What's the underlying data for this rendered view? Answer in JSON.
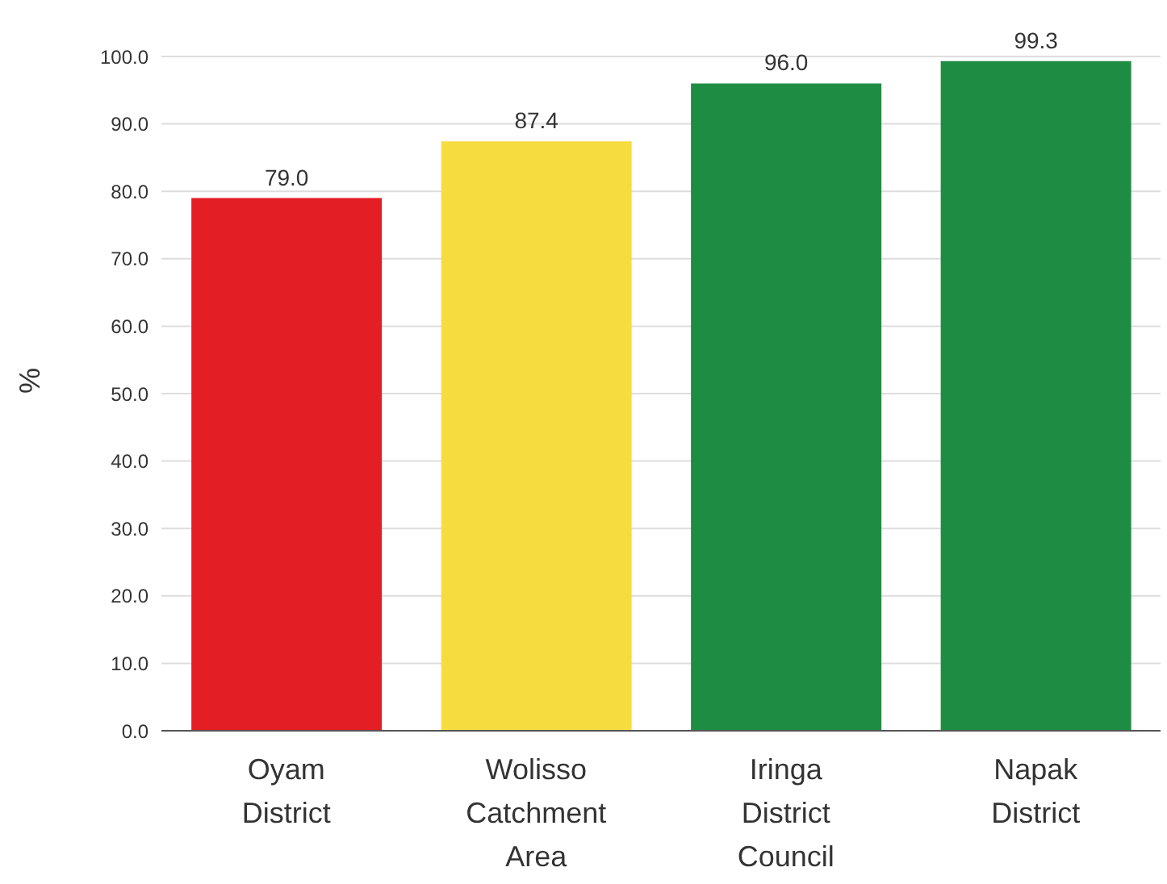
{
  "chart_data": {
    "type": "bar",
    "ylabel": "%",
    "categories": [
      "Oyam District",
      "Wolisso Catchment Area",
      "Iringa District Council",
      "Napak District"
    ],
    "values": [
      79.0,
      87.4,
      96.0,
      99.3
    ],
    "colors": [
      "#e31e24",
      "#f7dc40",
      "#1f8c44",
      "#1f8c44"
    ],
    "ylim": [
      0,
      100
    ],
    "yticks": [
      {
        "value": 0,
        "label": "0.0"
      },
      {
        "value": 10,
        "label": "10.0"
      },
      {
        "value": 20,
        "label": "20.0"
      },
      {
        "value": 30,
        "label": "30.0"
      },
      {
        "value": 40,
        "label": "40.0"
      },
      {
        "value": 50,
        "label": "50.0"
      },
      {
        "value": 60,
        "label": "60.0"
      },
      {
        "value": 70,
        "label": "70.0"
      },
      {
        "value": 80,
        "label": "80.0"
      },
      {
        "value": 90,
        "label": "90.0"
      },
      {
        "value": 100,
        "label": "100.0"
      }
    ],
    "value_labels": [
      "79.0",
      "87.4",
      "96.0",
      "99.3"
    ],
    "grid": "y"
  }
}
